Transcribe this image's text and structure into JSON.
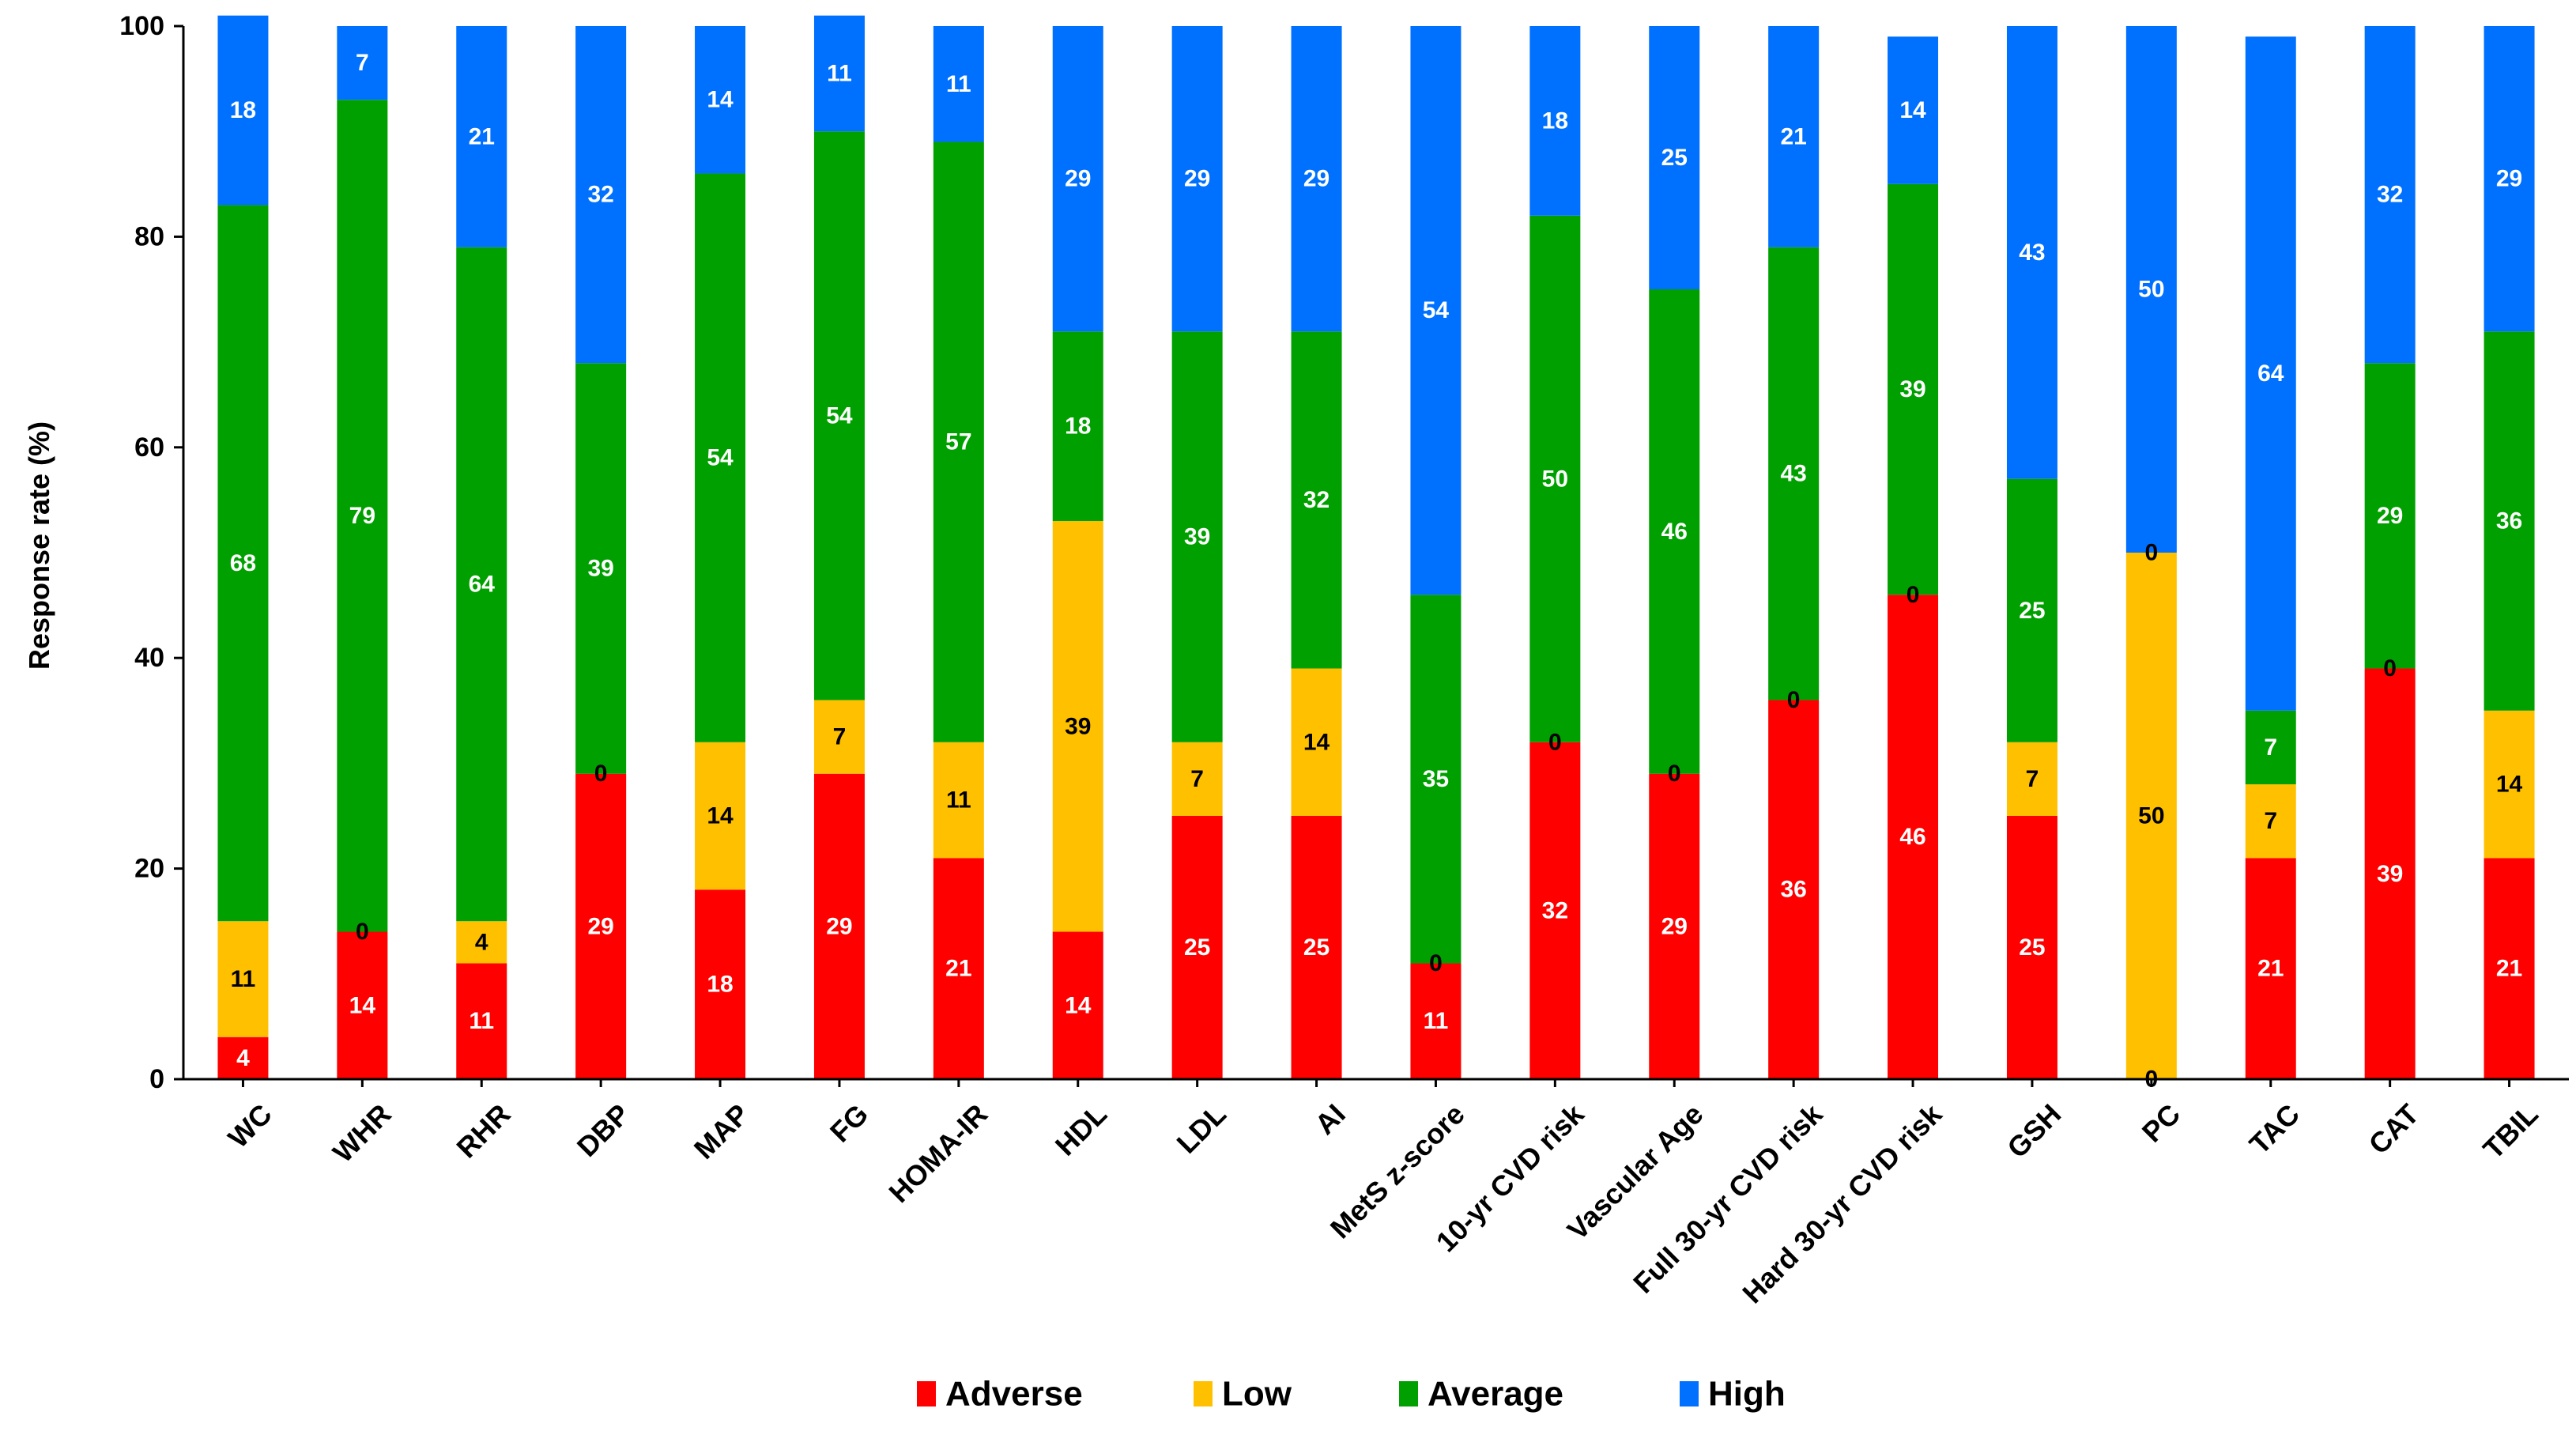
{
  "chart_data": {
    "type": "bar",
    "stacked": true,
    "title": "",
    "xlabel": "",
    "ylabel": "Response rate (%)",
    "ylim": [
      0,
      100
    ],
    "yticks": [
      0,
      20,
      40,
      60,
      80,
      100
    ],
    "grid": false,
    "legend_position": "bottom-center",
    "categories": [
      "WC",
      "WHR",
      "RHR",
      "DBP",
      "MAP",
      "FG",
      "HOMA-IR",
      "HDL",
      "LDL",
      "AI",
      "MetS z-score",
      "10-yr CVD risk",
      "Vascular Age",
      "Full 30-yr CVD risk",
      "Hard 30-yr CVD risk",
      "GSH",
      "PC",
      "TAC",
      "CAT",
      "TBIL"
    ],
    "series": [
      {
        "name": "Adverse",
        "color": "#ff0000",
        "label_color": "#ffffff",
        "values": [
          4,
          14,
          11,
          29,
          18,
          29,
          21,
          14,
          25,
          25,
          11,
          32,
          29,
          36,
          46,
          25,
          0,
          21,
          39,
          21
        ]
      },
      {
        "name": "Low",
        "color": "#ffc000",
        "label_color": "#000000",
        "values": [
          11,
          0,
          4,
          0,
          14,
          7,
          11,
          39,
          7,
          14,
          0,
          0,
          0,
          0,
          0,
          7,
          50,
          7,
          0,
          14
        ]
      },
      {
        "name": "Average",
        "color": "#00a000",
        "label_color": "#ffffff",
        "values": [
          68,
          79,
          64,
          39,
          54,
          54,
          57,
          18,
          39,
          32,
          35,
          50,
          46,
          43,
          39,
          25,
          0,
          7,
          29,
          36
        ]
      },
      {
        "name": "High",
        "color": "#0070ff",
        "label_color": "#ffffff",
        "values": [
          18,
          7,
          21,
          32,
          14,
          11,
          11,
          29,
          29,
          29,
          54,
          18,
          25,
          21,
          14,
          43,
          50,
          64,
          32,
          29
        ]
      }
    ]
  }
}
